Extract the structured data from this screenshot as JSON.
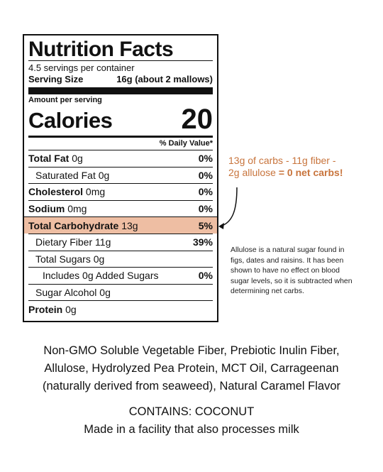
{
  "label": {
    "title": "Nutrition Facts",
    "servings_per_container": "4.5 servings per container",
    "serving_size_label": "Serving Size",
    "serving_size_value": "16g (about 2 mallows)",
    "amount_per_serving": "Amount per serving",
    "calories_label": "Calories",
    "calories_value": "20",
    "daily_value_header": "% Daily Value*",
    "rows": [
      {
        "name": "Total Fat",
        "amount": "0g",
        "dv": "0%"
      },
      {
        "name": "Saturated Fat",
        "amount": "0g",
        "dv": "0%"
      },
      {
        "name": "Cholesterol",
        "amount": "0mg",
        "dv": "0%"
      },
      {
        "name": "Sodium",
        "amount": "0mg",
        "dv": "0%"
      },
      {
        "name": "Total Carbohydrate",
        "amount": "13g",
        "dv": "5%"
      },
      {
        "name": "Dietary Fiber",
        "amount": "11g",
        "dv": "39%"
      },
      {
        "name": "Total Sugars",
        "amount": "0g",
        "dv": ""
      },
      {
        "name": "Includes",
        "amount": "0g",
        "suffix": "Added Sugars",
        "dv": "0%"
      },
      {
        "name": "Sugar Alcohol",
        "amount": "0g",
        "dv": ""
      },
      {
        "name": "Protein",
        "amount": "0g",
        "dv": ""
      }
    ]
  },
  "callout": {
    "line1": "13g of carbs - 11g fiber -",
    "line2_start": "2g allulose",
    "line2_end": "= 0 net carbs!",
    "color": "#c8743c"
  },
  "note": "Allulose is a natural sugar found in figs, dates and raisins. It has been shown to have no effect on blood sugar levels, so it is subtracted when determining net carbs.",
  "ingredients": {
    "line1": "Non-GMO Soluble Vegetable Fiber, Prebiotic Inulin Fiber,",
    "line2": "Allulose, Hydrolyzed Pea Protein, MCT Oil, Carrageenan",
    "line3": "(naturally derived from seaweed), Natural Caramel Flavor"
  },
  "contains": {
    "allergen": "CONTAINS: COCONUT",
    "facility": "Made in a facility that also processes milk"
  },
  "highlight_color": "#eebea3"
}
